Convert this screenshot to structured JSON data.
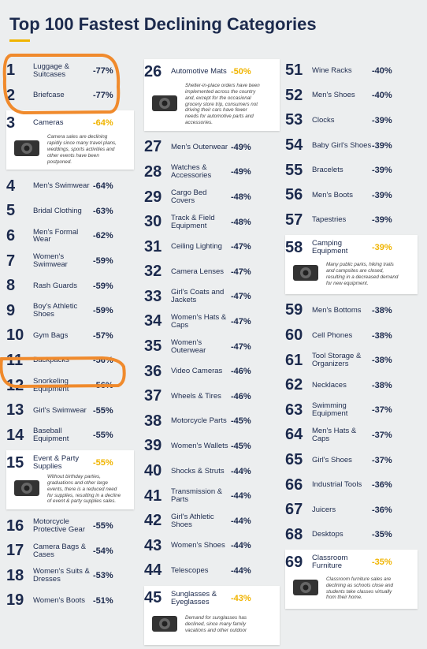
{
  "header": {
    "title": "Top 100 Fastest Declining Categories"
  },
  "columns": [
    [
      {
        "rank": 1,
        "name": "Luggage & Suitcases",
        "change": "-77%"
      },
      {
        "rank": 2,
        "name": "Briefcase",
        "change": "-77%"
      },
      {
        "rank": 3,
        "name": "Cameras",
        "change": "-64%",
        "note": "Camera sales are declining rapidly since many travel plans, weddings, sports activities and other events have been postponed."
      },
      {
        "rank": 4,
        "name": "Men's Swimwear",
        "change": "-64%"
      },
      {
        "rank": 5,
        "name": "Bridal Clothing",
        "change": "-63%"
      },
      {
        "rank": 6,
        "name": "Men's Formal Wear",
        "change": "-62%"
      },
      {
        "rank": 7,
        "name": "Women's Swimwear",
        "change": "-59%"
      },
      {
        "rank": 8,
        "name": "Rash Guards",
        "change": "-59%"
      },
      {
        "rank": 9,
        "name": "Boy's Athletic Shoes",
        "change": "-59%"
      },
      {
        "rank": 10,
        "name": "Gym Bags",
        "change": "-57%"
      },
      {
        "rank": 11,
        "name": "Backpacks",
        "change": "-56%"
      },
      {
        "rank": 12,
        "name": "Snorkeling Equipment",
        "change": "-56%"
      },
      {
        "rank": 13,
        "name": "Girl's Swimwear",
        "change": "-55%"
      },
      {
        "rank": 14,
        "name": "Baseball Equipment",
        "change": "-55%"
      },
      {
        "rank": 15,
        "name": "Event & Party Supplies",
        "change": "-55%",
        "note": "Without birthday parties, graduations and other large events, there is a reduced need for supplies, resulting in a decline of event & party supplies sales."
      },
      {
        "rank": 16,
        "name": "Motorcycle Protective Gear",
        "change": "-55%"
      },
      {
        "rank": 17,
        "name": "Camera Bags & Cases",
        "change": "-54%"
      },
      {
        "rank": 18,
        "name": "Women's Suits & Dresses",
        "change": "-53%"
      },
      {
        "rank": 19,
        "name": "Women's Boots",
        "change": "-51%"
      }
    ],
    [
      {
        "rank": 26,
        "name": "Automotive Mats",
        "change": "-50%",
        "note": "Shelter-in-place orders have been implemented across the country and, except for the occasional grocery store trip, consumers not driving their cars have fewer needs for automotive parts and accessories."
      },
      {
        "rank": 27,
        "name": "Men's Outerwear",
        "change": "-49%"
      },
      {
        "rank": 28,
        "name": "Watches & Accessories",
        "change": "-49%"
      },
      {
        "rank": 29,
        "name": "Cargo Bed Covers",
        "change": "-48%"
      },
      {
        "rank": 30,
        "name": "Track & Field Equipment",
        "change": "-48%"
      },
      {
        "rank": 31,
        "name": "Ceiling Lighting",
        "change": "-47%"
      },
      {
        "rank": 32,
        "name": "Camera Lenses",
        "change": "-47%"
      },
      {
        "rank": 33,
        "name": "Girl's Coats and Jackets",
        "change": "-47%"
      },
      {
        "rank": 34,
        "name": "Women's Hats & Caps",
        "change": "-47%"
      },
      {
        "rank": 35,
        "name": "Women's Outerwear",
        "change": "-47%"
      },
      {
        "rank": 36,
        "name": "Video Cameras",
        "change": "-46%"
      },
      {
        "rank": 37,
        "name": "Wheels & Tires",
        "change": "-46%"
      },
      {
        "rank": 38,
        "name": "Motorcycle Parts",
        "change": "-45%"
      },
      {
        "rank": 39,
        "name": "Women's Wallets",
        "change": "-45%"
      },
      {
        "rank": 40,
        "name": "Shocks & Struts",
        "change": "-44%"
      },
      {
        "rank": 41,
        "name": "Transmission & Parts",
        "change": "-44%"
      },
      {
        "rank": 42,
        "name": "Girl's Athletic Shoes",
        "change": "-44%"
      },
      {
        "rank": 43,
        "name": "Women's Shoes",
        "change": "-44%"
      },
      {
        "rank": 44,
        "name": "Telescopes",
        "change": "-44%"
      },
      {
        "rank": 45,
        "name": "Sunglasses & Eyeglasses",
        "change": "-43%",
        "note": "Demand for sunglasses has declined, since many family vacations and other outdoor"
      }
    ],
    [
      {
        "rank": 51,
        "name": "Wine Racks",
        "change": "-40%"
      },
      {
        "rank": 52,
        "name": "Men's Shoes",
        "change": "-40%"
      },
      {
        "rank": 53,
        "name": "Clocks",
        "change": "-39%"
      },
      {
        "rank": 54,
        "name": "Baby Girl's Shoes",
        "change": "-39%"
      },
      {
        "rank": 55,
        "name": "Bracelets",
        "change": "-39%"
      },
      {
        "rank": 56,
        "name": "Men's Boots",
        "change": "-39%"
      },
      {
        "rank": 57,
        "name": "Tapestries",
        "change": "-39%"
      },
      {
        "rank": 58,
        "name": "Camping Equipment",
        "change": "-39%",
        "note": "Many public parks, hiking trails and campsites are closed, resulting in a decreased demand for new equipment."
      },
      {
        "rank": 59,
        "name": "Men's Bottoms",
        "change": "-38%"
      },
      {
        "rank": 60,
        "name": "Cell Phones",
        "change": "-38%"
      },
      {
        "rank": 61,
        "name": "Tool Storage & Organizers",
        "change": "-38%"
      },
      {
        "rank": 62,
        "name": "Necklaces",
        "change": "-38%"
      },
      {
        "rank": 63,
        "name": "Swimming Equipment",
        "change": "-37%"
      },
      {
        "rank": 64,
        "name": "Men's Hats & Caps",
        "change": "-37%"
      },
      {
        "rank": 65,
        "name": "Girl's Shoes",
        "change": "-37%"
      },
      {
        "rank": 66,
        "name": "Industrial Tools",
        "change": "-36%"
      },
      {
        "rank": 67,
        "name": "Juicers",
        "change": "-36%"
      },
      {
        "rank": 68,
        "name": "Desktops",
        "change": "-35%"
      },
      {
        "rank": 69,
        "name": "Classroom Furniture",
        "change": "-35%",
        "note": "Classroom furniture sales are declining as schools close and students take classes virtually from their home."
      }
    ]
  ]
}
